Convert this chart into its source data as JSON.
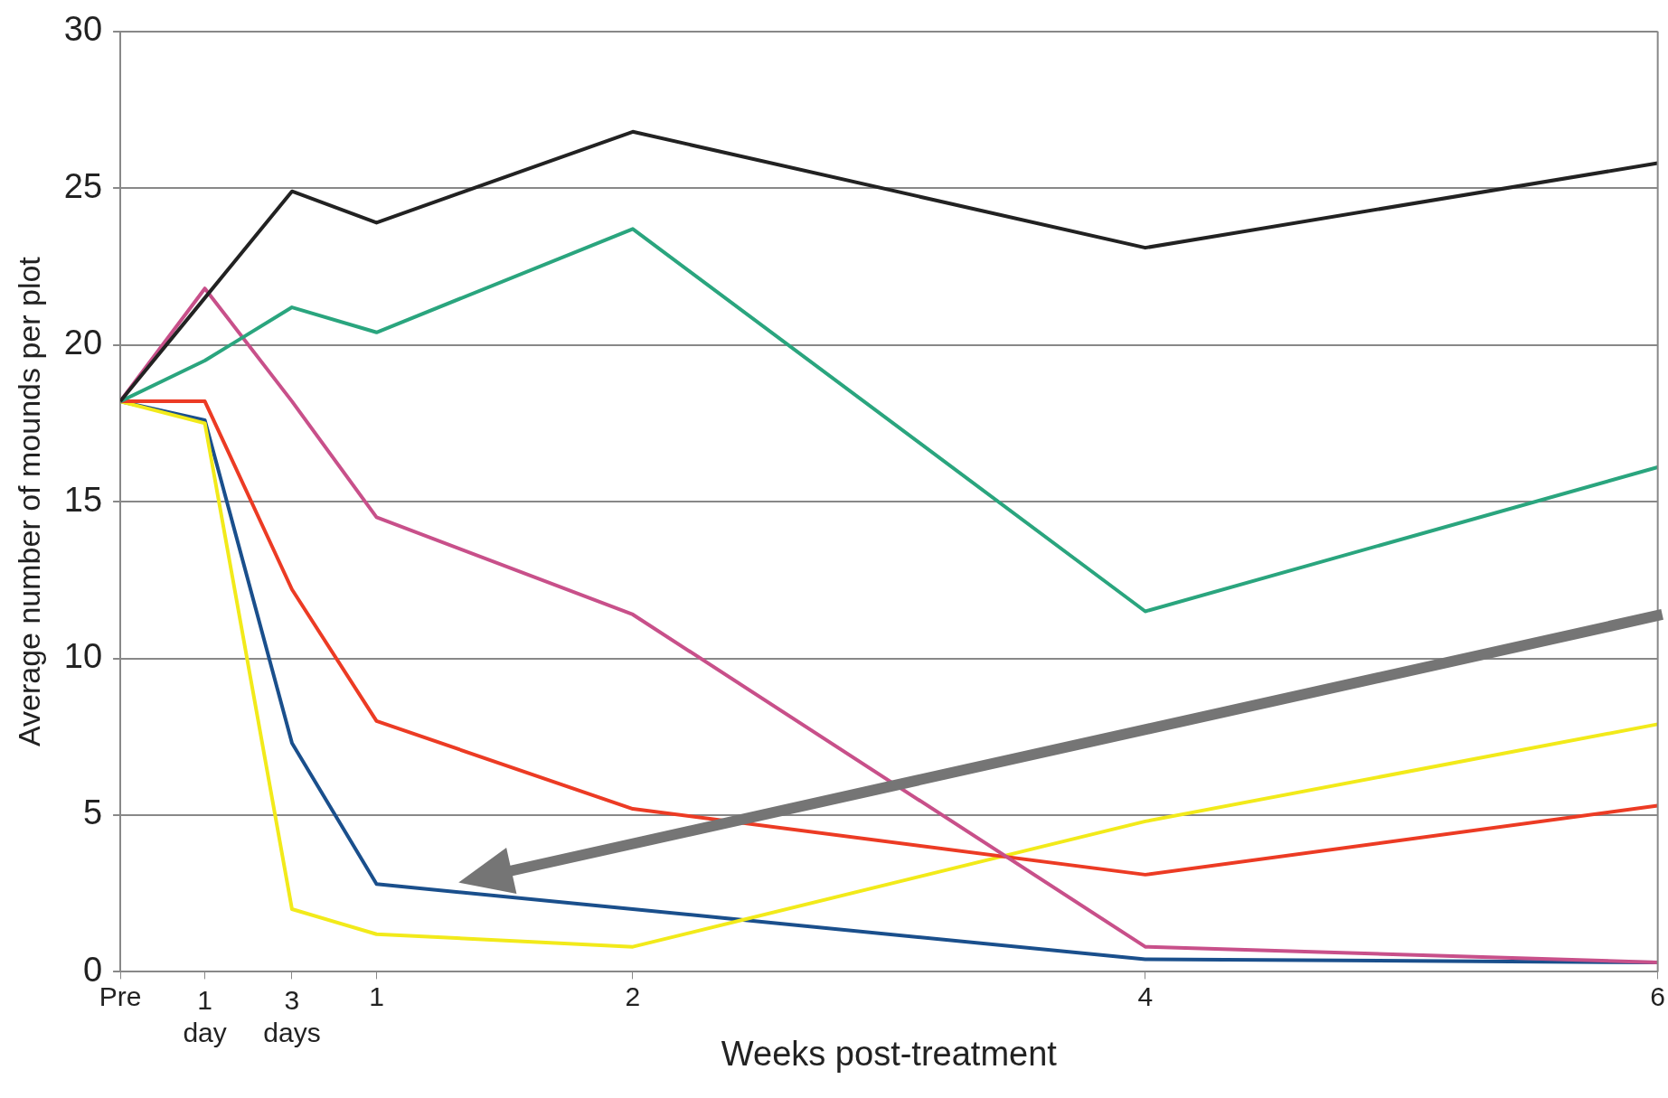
{
  "chart_data": {
    "type": "line",
    "xlabel": "Weeks post-treatment",
    "ylabel": "Average number of mounds per plot",
    "x": [
      0,
      0.33,
      0.67,
      1,
      2,
      4,
      6
    ],
    "xlim": [
      0,
      6
    ],
    "xticks": [
      {
        "value": 0,
        "label": "Pre"
      },
      {
        "value": 0.33,
        "label": null
      },
      {
        "value": 0.67,
        "label": null
      },
      1,
      2,
      4,
      6
    ],
    "annotations": [
      "1 day",
      "3 days"
    ],
    "ylim": [
      0,
      30
    ],
    "yticks": [
      0,
      5,
      10,
      15,
      20,
      25,
      30
    ],
    "grid": "y",
    "legend": false,
    "marker": "none",
    "line_style": "solid",
    "series": [
      {
        "color": "#222222",
        "values": [
          18.2,
          21.5,
          24.9,
          23.9,
          26.8,
          23.1,
          25.8
        ]
      },
      {
        "color": "#2aa57e",
        "values": [
          18.2,
          19.5,
          21.2,
          20.4,
          23.7,
          11.5,
          16.1
        ]
      },
      {
        "color": "#c8508a",
        "values": [
          18.2,
          21.8,
          18.2,
          14.5,
          11.4,
          0.8,
          0.3
        ]
      },
      {
        "color": "#ec3b24",
        "values": [
          18.2,
          18.2,
          12.2,
          8.0,
          5.2,
          3.1,
          5.3
        ]
      },
      {
        "color": "#f2ea1a",
        "values": [
          18.2,
          17.5,
          2.0,
          1.2,
          0.8,
          4.8,
          7.9
        ]
      },
      {
        "color": "#1a4f8c",
        "values": [
          18.2,
          17.6,
          7.3,
          2.8,
          2.0,
          0.4,
          0.3
        ]
      }
    ]
  }
}
